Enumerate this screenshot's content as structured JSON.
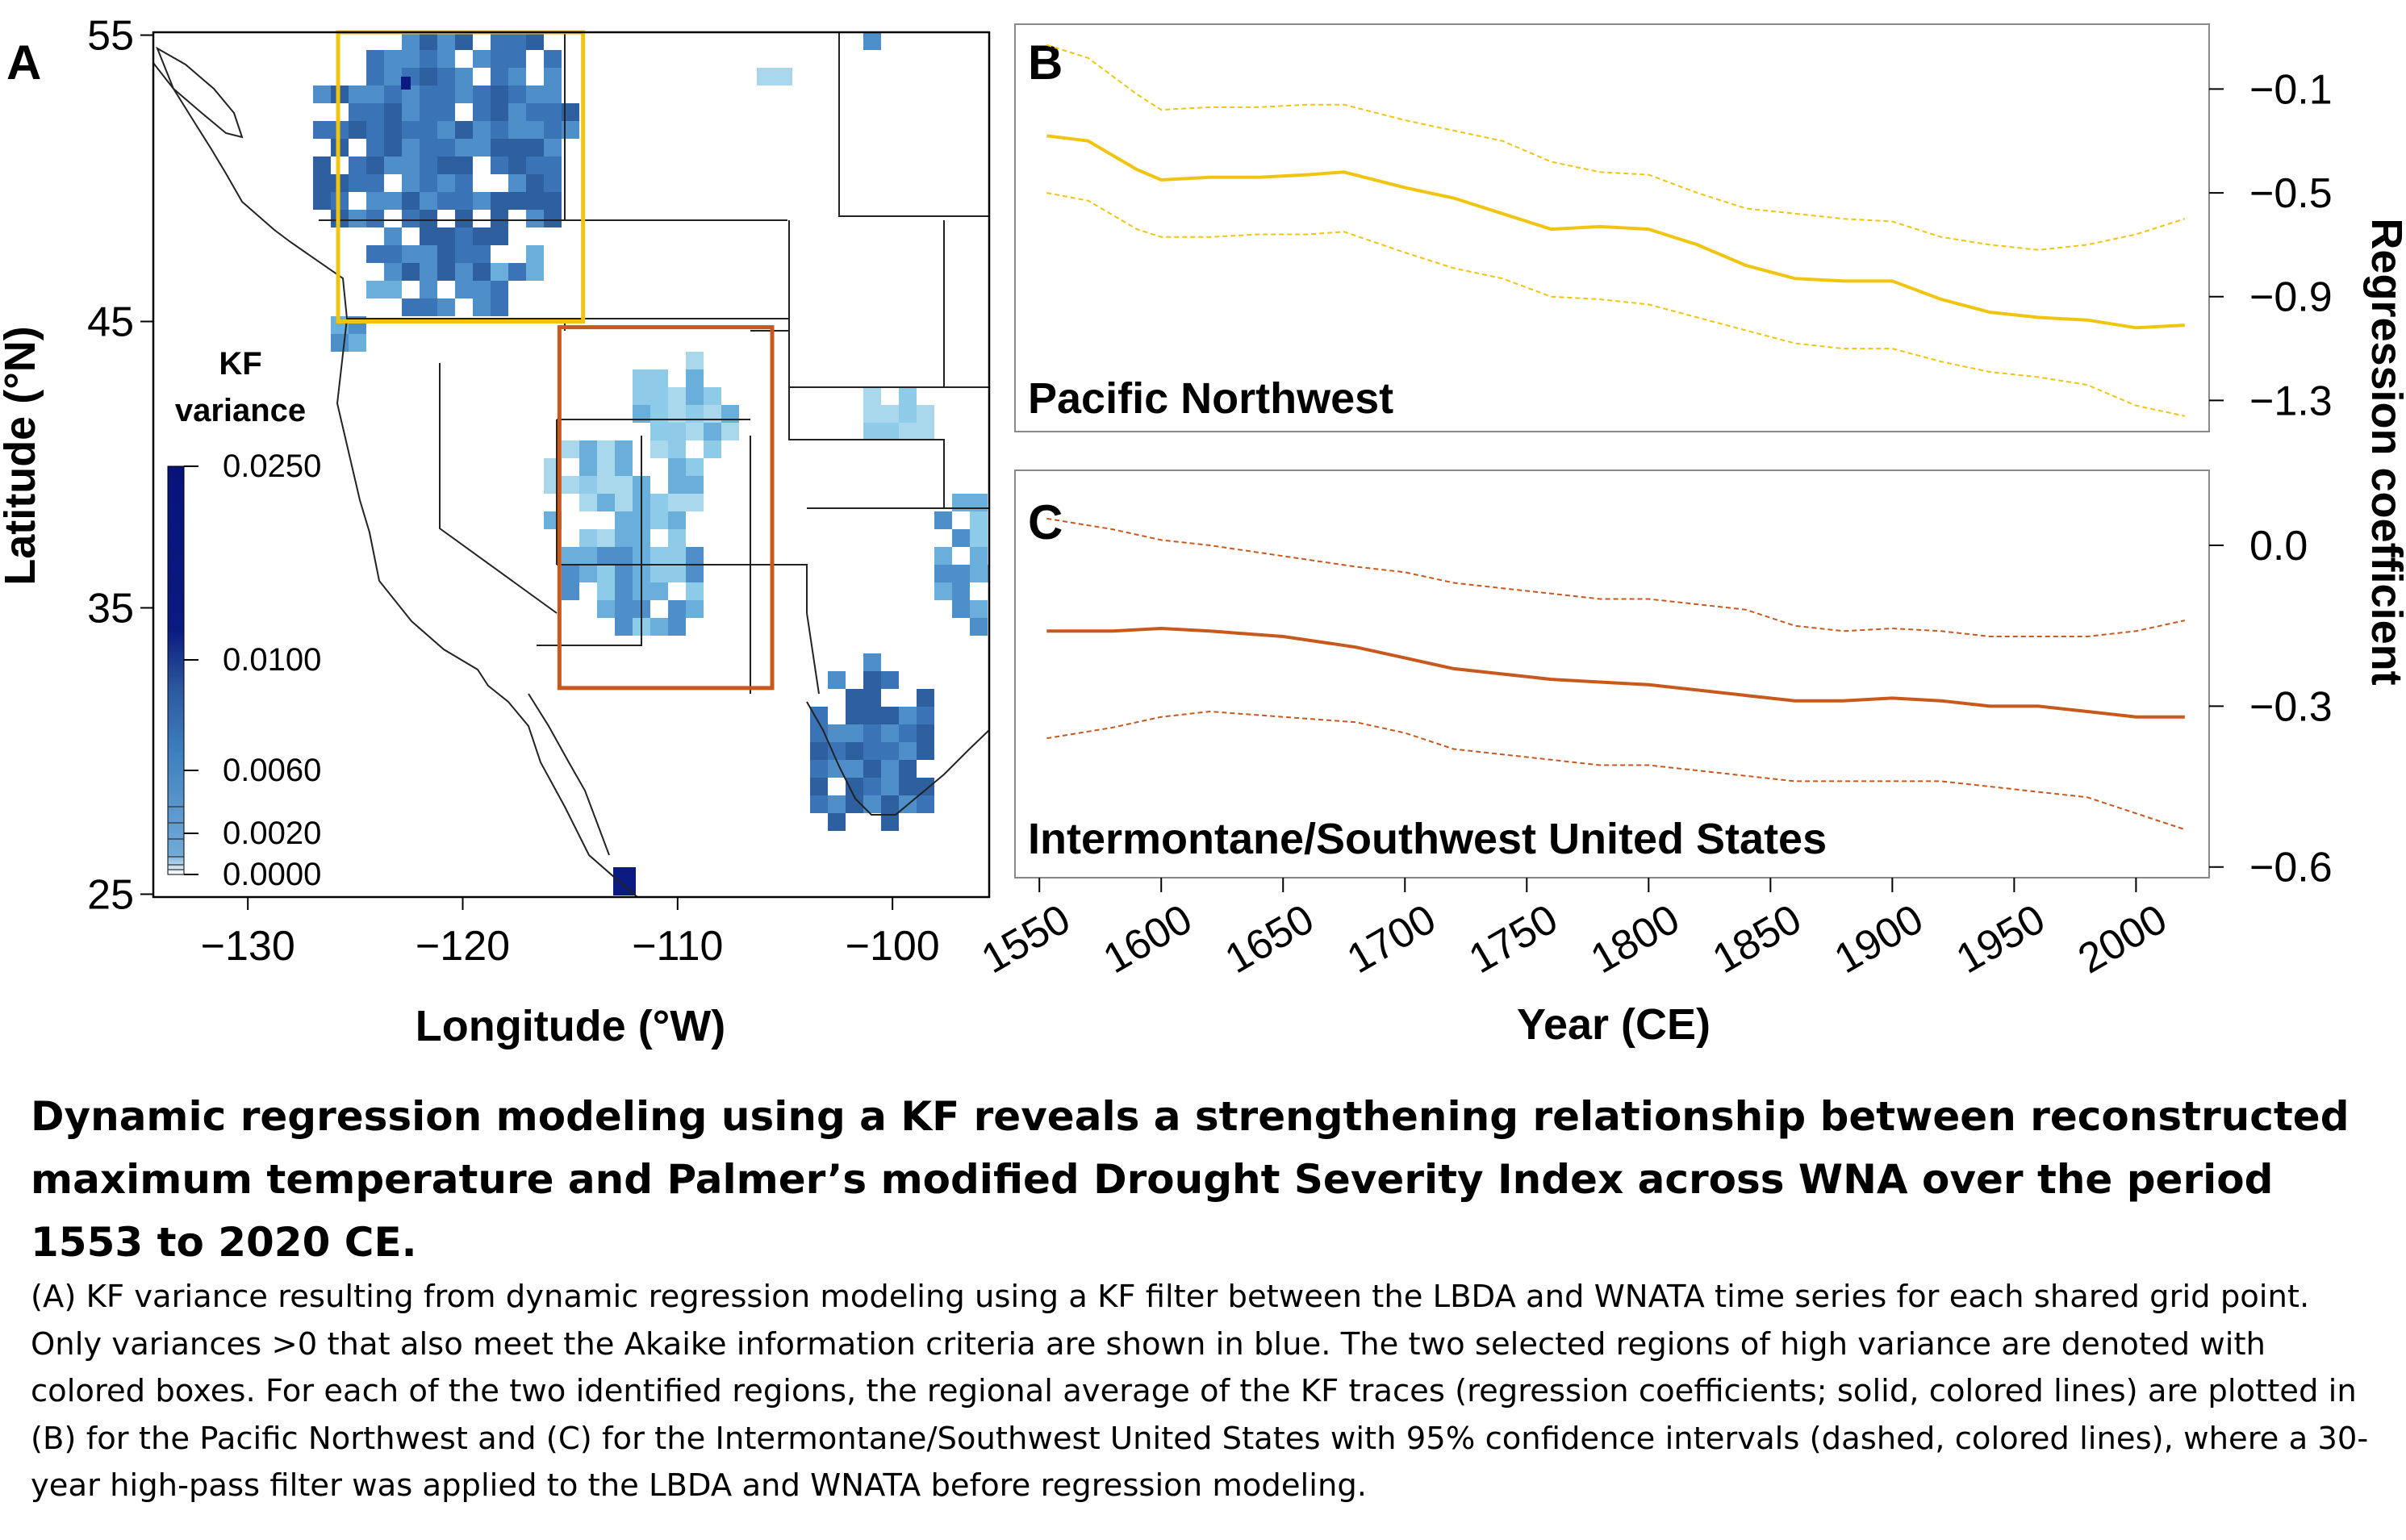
{
  "panels": {
    "a": {
      "letter": "A"
    },
    "b": {
      "letter": "B",
      "region_label": "Pacific Northwest"
    },
    "c": {
      "letter": "C",
      "region_label": "Intermontane/Southwest United States"
    }
  },
  "map": {
    "xlabel": "Longitude (°W)",
    "ylabel": "Latitude (°N)",
    "x_ticks": [
      -130,
      -120,
      -110,
      -100
    ],
    "x_tick_labels": [
      "−130",
      "−120",
      "−110",
      "−100"
    ],
    "y_ticks": [
      25,
      35,
      45,
      55
    ],
    "y_tick_labels": [
      "25",
      "35",
      "45",
      "55"
    ],
    "xlim": [
      -134.4,
      -95.5
    ],
    "ylim": [
      24.9,
      55.1
    ],
    "colorbar": {
      "title_line1": "KF",
      "title_line2": "variance",
      "tick_labels": [
        "0.0250",
        "0.0100",
        "0.0060",
        "0.0020",
        "0.0000"
      ]
    },
    "region_boxes": [
      {
        "name": "Pacific Northwest",
        "lon": [
          -125.8,
          -114.4
        ],
        "lat": [
          45.0,
          55.1
        ],
        "color": "#F1C40F"
      },
      {
        "name": "Intermontane/Southwest",
        "lon": [
          -115.5,
          -105.6
        ],
        "lat": [
          32.2,
          44.8
        ],
        "color": "#C8581B"
      }
    ]
  },
  "chart_data": [
    {
      "type": "line",
      "panel": "B",
      "xlabel": "Year (CE)",
      "ylabel": "Regression coefficient",
      "xlim": [
        1540,
        2030
      ],
      "ylim": [
        -1.42,
        0.15
      ],
      "x_ticks": [
        1550,
        1600,
        1650,
        1700,
        1750,
        1800,
        1850,
        1900,
        1950,
        2000
      ],
      "y_ticks": [
        -0.1,
        -0.5,
        -0.9,
        -1.3
      ],
      "y_tick_labels": [
        "−0.1",
        "−0.5",
        "−0.9",
        "−1.3"
      ],
      "color": "#F1C40F",
      "x": [
        1553,
        1570,
        1590,
        1600,
        1620,
        1640,
        1660,
        1675,
        1700,
        1720,
        1740,
        1760,
        1780,
        1800,
        1820,
        1840,
        1860,
        1880,
        1900,
        1920,
        1940,
        1960,
        1980,
        2000,
        2020
      ],
      "series": [
        {
          "values": [
            -0.28,
            -0.3,
            -0.41,
            -0.45,
            -0.44,
            -0.44,
            -0.43,
            -0.42,
            -0.48,
            -0.52,
            -0.58,
            -0.64,
            -0.63,
            -0.64,
            -0.7,
            -0.78,
            -0.83,
            -0.84,
            -0.84,
            -0.91,
            -0.96,
            -0.98,
            -0.99,
            -1.02,
            -1.01
          ]
        },
        {
          "values": [
            0.07,
            0.02,
            -0.12,
            -0.18,
            -0.17,
            -0.17,
            -0.16,
            -0.16,
            -0.22,
            -0.26,
            -0.3,
            -0.38,
            -0.42,
            -0.43,
            -0.5,
            -0.56,
            -0.58,
            -0.6,
            -0.61,
            -0.67,
            -0.7,
            -0.72,
            -0.7,
            -0.66,
            -0.6
          ]
        },
        {
          "values": [
            -0.5,
            -0.53,
            -0.64,
            -0.67,
            -0.67,
            -0.66,
            -0.66,
            -0.65,
            -0.73,
            -0.79,
            -0.83,
            -0.9,
            -0.91,
            -0.93,
            -0.98,
            -1.03,
            -1.08,
            -1.1,
            -1.1,
            -1.15,
            -1.19,
            -1.21,
            -1.24,
            -1.32,
            -1.36
          ]
        }
      ]
    },
    {
      "type": "line",
      "panel": "C",
      "xlabel": "Year (CE)",
      "ylabel": "Regression coefficient",
      "xlim": [
        1540,
        2030
      ],
      "ylim": [
        -0.62,
        0.14
      ],
      "x_ticks": [
        1550,
        1600,
        1650,
        1700,
        1750,
        1800,
        1850,
        1900,
        1950,
        2000
      ],
      "y_ticks": [
        0.0,
        -0.3,
        -0.6
      ],
      "y_tick_labels": [
        "0.0",
        "−0.3",
        "−0.6"
      ],
      "color": "#C8581B",
      "x": [
        1553,
        1580,
        1600,
        1620,
        1650,
        1680,
        1700,
        1720,
        1740,
        1760,
        1780,
        1800,
        1820,
        1840,
        1860,
        1880,
        1900,
        1920,
        1940,
        1960,
        1980,
        2000,
        2020
      ],
      "series": [
        {
          "values": [
            -0.16,
            -0.16,
            -0.155,
            -0.16,
            -0.17,
            -0.19,
            -0.21,
            -0.23,
            -0.24,
            -0.25,
            -0.255,
            -0.26,
            -0.27,
            -0.28,
            -0.29,
            -0.29,
            -0.285,
            -0.29,
            -0.3,
            -0.3,
            -0.31,
            -0.32,
            -0.32
          ]
        },
        {
          "values": [
            0.05,
            0.03,
            0.01,
            0.0,
            -0.02,
            -0.04,
            -0.05,
            -0.07,
            -0.08,
            -0.09,
            -0.1,
            -0.1,
            -0.11,
            -0.12,
            -0.15,
            -0.16,
            -0.155,
            -0.16,
            -0.17,
            -0.17,
            -0.17,
            -0.16,
            -0.14
          ]
        },
        {
          "values": [
            -0.36,
            -0.34,
            -0.32,
            -0.31,
            -0.32,
            -0.33,
            -0.35,
            -0.38,
            -0.39,
            -0.4,
            -0.41,
            -0.41,
            -0.42,
            -0.43,
            -0.44,
            -0.44,
            -0.44,
            -0.44,
            -0.45,
            -0.46,
            -0.47,
            -0.5,
            -0.53
          ]
        }
      ]
    }
  ],
  "caption": {
    "title": "Dynamic regression modeling using a KF reveals a strengthening relationship between reconstructed maximum temperature and Palmer’s modified Drought Severity Index across WNA over the period 1553 to 2020 CE.",
    "body": "(A) KF variance resulting from dynamic regression modeling using a KF filter between the LBDA and WNATA time series for each shared grid point. Only variances >0 that also meet the Akaike information criteria are shown in blue. The two selected regions of high variance are denoted with colored boxes. For each of the two identified regions, the regional average of the KF traces (regression coefficients; solid, colored lines) are plotted in (B) for the Pacific Northwest and (C) for the Intermontane/Southwest United States with 95% confidence intervals (dashed, colored lines), where a 30-year high-pass filter was applied to the LBDA and WNATA before regression modeling."
  }
}
